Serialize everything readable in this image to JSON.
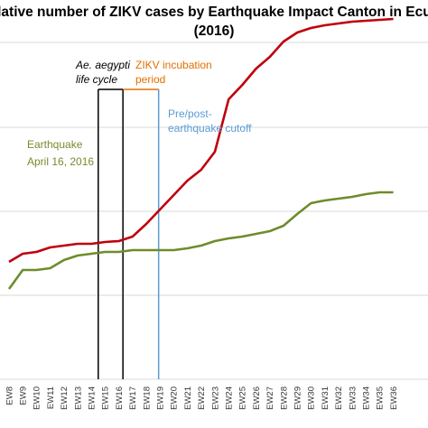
{
  "chart_data": {
    "type": "line",
    "title_line1": "ulative number of ZIKV cases by Earthquake Impact Canton in Ecua",
    "title_line2": "(2016)",
    "categories": [
      "EW8",
      "EW9",
      "EW10",
      "EW11",
      "EW12",
      "EW13",
      "EW14",
      "EW15",
      "EW16",
      "EW17",
      "EW18",
      "EW19",
      "EW20",
      "EW21",
      "EW22",
      "EW23",
      "EW24",
      "EW25",
      "EW26",
      "EW27",
      "EW28",
      "EW29",
      "EW30",
      "EW31",
      "EW32",
      "EW33",
      "EW34",
      "EW35",
      "EW36"
    ],
    "series": [
      {
        "color": "#c0000a",
        "values": [
          290,
          281,
          279,
          274,
          272,
          270,
          270,
          268,
          267,
          262,
          248,
          232,
          216,
          200,
          188,
          168,
          110,
          94,
          76,
          63,
          46,
          36,
          31,
          28,
          26,
          24,
          23,
          22,
          21
        ]
      },
      {
        "color": "#6e8c2c",
        "values": [
          320,
          299,
          299,
          297,
          288,
          283,
          281,
          279,
          279,
          277,
          277,
          277,
          277,
          275,
          272,
          267,
          264,
          262,
          259,
          256,
          250,
          237,
          225,
          222,
          220,
          218,
          215,
          213,
          213
        ]
      }
    ],
    "annotations": {
      "aegypti_line1": "Ae. aegypti",
      "aegypti_line2": "life cycle",
      "zikv_line1": "ZIKV incubation",
      "zikv_line2": "period",
      "cutoff_line1": "Pre/post-",
      "cutoff_line2": "earthquake cutoff",
      "earthquake_line1": "Earthquake",
      "earthquake_line2": "April 16, 2016"
    },
    "colors": {
      "grid": "#d9d9d9",
      "aegypti": "#000000",
      "zikv": "#e07000",
      "cutoff": "#5b9bd5",
      "earthquake": "#7a8a2c"
    }
  }
}
